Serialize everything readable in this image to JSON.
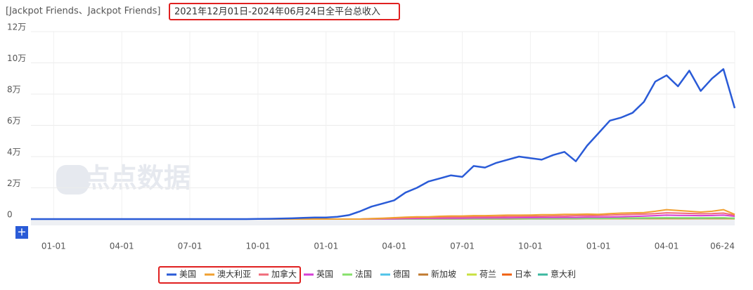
{
  "chart_data": {
    "type": "line",
    "app_title": "[Jackpot Friends、Jackpot Friends]",
    "title": "2021年12月01日-2024年06月24日全平台总收入",
    "watermark": "点点数据",
    "categories": [
      null,
      null,
      "01-01",
      null,
      null,
      null,
      null,
      null,
      "04-01",
      null,
      null,
      null,
      null,
      null,
      "07-01",
      null,
      null,
      null,
      null,
      null,
      "10-01",
      null,
      null,
      null,
      null,
      null,
      "01-01",
      null,
      null,
      null,
      null,
      null,
      "04-01",
      null,
      null,
      null,
      null,
      null,
      "07-01",
      null,
      null,
      null,
      null,
      null,
      "10-01",
      null,
      null,
      null,
      null,
      null,
      "01-01",
      null,
      null,
      null,
      null,
      null,
      "04-01",
      null,
      null,
      null,
      null,
      null,
      "06-24"
    ],
    "ylim": [
      0,
      120000
    ],
    "yticks": [
      0,
      {
        "value": 20000,
        "label": "2万"
      },
      {
        "value": 40000,
        "label": "4万"
      },
      {
        "value": 60000,
        "label": "6万"
      },
      {
        "value": 80000,
        "label": "8万"
      },
      {
        "value": 100000,
        "label": "10万"
      },
      {
        "value": 120000,
        "label": "12万"
      }
    ],
    "grid": true,
    "legend": "bottom",
    "series": [
      {
        "name": "美国",
        "color": "#2a5bd7",
        "values": [
          0,
          0,
          0,
          0,
          0,
          0,
          0,
          0,
          0,
          0,
          0,
          0,
          0,
          0,
          0,
          0,
          0,
          0,
          0,
          0,
          100,
          200,
          300,
          500,
          800,
          1000,
          1000,
          1500,
          2500,
          5000,
          8000,
          10000,
          12000,
          17000,
          20000,
          24000,
          26000,
          28000,
          27000,
          34000,
          33000,
          36000,
          38000,
          40000,
          39000,
          38000,
          41000,
          43000,
          37000,
          47000,
          55000,
          63000,
          65000,
          68000,
          75000,
          88000,
          92000,
          85000,
          95000,
          82000,
          90000,
          96000,
          71000
        ]
      },
      {
        "name": "澳大利亚",
        "color": "#f0a030",
        "values": [
          0,
          0,
          0,
          0,
          0,
          0,
          0,
          0,
          0,
          0,
          0,
          0,
          0,
          0,
          0,
          0,
          0,
          0,
          0,
          0,
          0,
          0,
          0,
          0,
          0,
          0,
          0,
          0,
          0,
          0,
          300,
          600,
          900,
          1200,
          1500,
          1500,
          1800,
          2000,
          2000,
          2200,
          2200,
          2400,
          2500,
          2500,
          2600,
          2800,
          2800,
          3000,
          3000,
          3200,
          3000,
          3500,
          3800,
          4000,
          4200,
          5000,
          6000,
          5500,
          5000,
          4500,
          5000,
          6000,
          3000
        ]
      },
      {
        "name": "加拿大",
        "color": "#f06b7a",
        "values": [
          0,
          0,
          0,
          0,
          0,
          0,
          0,
          0,
          0,
          0,
          0,
          0,
          0,
          0,
          0,
          0,
          0,
          0,
          0,
          0,
          0,
          0,
          0,
          0,
          0,
          0,
          0,
          0,
          0,
          0,
          200,
          300,
          500,
          700,
          900,
          1000,
          1100,
          1200,
          1300,
          1400,
          1500,
          1500,
          1600,
          1700,
          1800,
          1800,
          2000,
          2000,
          2200,
          2200,
          2300,
          2500,
          2800,
          3000,
          3200,
          3500,
          4000,
          3800,
          3600,
          3400,
          3500,
          3800,
          2500
        ]
      },
      {
        "name": "英国",
        "color": "#d63fd6",
        "values": [
          0,
          0,
          0,
          0,
          0,
          0,
          0,
          0,
          0,
          0,
          0,
          0,
          0,
          0,
          0,
          0,
          0,
          0,
          0,
          0,
          0,
          0,
          0,
          0,
          0,
          0,
          0,
          0,
          0,
          0,
          100,
          150,
          200,
          300,
          400,
          500,
          500,
          600,
          600,
          700,
          700,
          800,
          800,
          900,
          900,
          1000,
          1000,
          1100,
          1100,
          1200,
          1200,
          1300,
          1500,
          1700,
          1900,
          2200,
          2500,
          2400,
          2300,
          2200,
          2300,
          2500,
          1800
        ]
      },
      {
        "name": "法国",
        "color": "#86e06a",
        "values": [
          0,
          0,
          0,
          0,
          0,
          0,
          0,
          0,
          0,
          0,
          0,
          0,
          0,
          0,
          0,
          0,
          0,
          0,
          0,
          0,
          0,
          0,
          0,
          0,
          0,
          0,
          0,
          0,
          0,
          0,
          50,
          80,
          100,
          150,
          200,
          200,
          250,
          300,
          300,
          300,
          350,
          350,
          400,
          400,
          400,
          450,
          450,
          500,
          500,
          500,
          550,
          600,
          650,
          700,
          750,
          800,
          850,
          800,
          800,
          750,
          800,
          850,
          600
        ]
      },
      {
        "name": "德国",
        "color": "#4fc3e8",
        "values": [
          0,
          0,
          0,
          0,
          0,
          0,
          0,
          0,
          0,
          0,
          0,
          0,
          0,
          0,
          0,
          0,
          0,
          0,
          0,
          0,
          0,
          0,
          0,
          0,
          0,
          0,
          0,
          0,
          0,
          0,
          50,
          80,
          100,
          120,
          150,
          180,
          200,
          220,
          250,
          250,
          280,
          300,
          300,
          320,
          350,
          350,
          380,
          400,
          400,
          420,
          450,
          500,
          550,
          600,
          650,
          700,
          750,
          700,
          700,
          650,
          700,
          750,
          500
        ]
      },
      {
        "name": "新加坡",
        "color": "#c07a30",
        "values": [
          0,
          0,
          0,
          0,
          0,
          0,
          0,
          0,
          0,
          0,
          0,
          0,
          0,
          0,
          0,
          0,
          0,
          0,
          0,
          0,
          0,
          0,
          0,
          0,
          0,
          0,
          0,
          0,
          0,
          0,
          20,
          40,
          60,
          80,
          100,
          120,
          140,
          150,
          160,
          170,
          180,
          190,
          200,
          210,
          220,
          230,
          240,
          250,
          260,
          270,
          280,
          300,
          320,
          340,
          360,
          380,
          400,
          380,
          370,
          360,
          370,
          380,
          300
        ]
      },
      {
        "name": "荷兰",
        "color": "#c8e040",
        "values": [
          0,
          0,
          0,
          0,
          0,
          0,
          0,
          0,
          0,
          0,
          0,
          0,
          0,
          0,
          0,
          0,
          0,
          0,
          0,
          0,
          0,
          0,
          0,
          0,
          0,
          0,
          0,
          0,
          0,
          0,
          20,
          30,
          50,
          60,
          80,
          90,
          100,
          110,
          120,
          130,
          140,
          150,
          160,
          170,
          180,
          190,
          200,
          210,
          220,
          230,
          240,
          250,
          260,
          270,
          280,
          300,
          320,
          310,
          300,
          290,
          300,
          310,
          250
        ]
      },
      {
        "name": "日本",
        "color": "#f06010",
        "values": [
          0,
          0,
          0,
          0,
          0,
          0,
          0,
          0,
          0,
          0,
          0,
          0,
          0,
          0,
          0,
          0,
          0,
          0,
          0,
          0,
          0,
          0,
          0,
          0,
          0,
          0,
          0,
          0,
          0,
          0,
          20,
          30,
          40,
          50,
          60,
          70,
          80,
          90,
          100,
          110,
          120,
          130,
          140,
          150,
          160,
          170,
          180,
          190,
          200,
          210,
          220,
          230,
          240,
          250,
          260,
          270,
          280,
          270,
          260,
          250,
          260,
          270,
          200
        ]
      },
      {
        "name": "意大利",
        "color": "#3cb8a0",
        "values": [
          0,
          0,
          0,
          0,
          0,
          0,
          0,
          0,
          0,
          0,
          0,
          0,
          0,
          0,
          0,
          0,
          0,
          0,
          0,
          0,
          0,
          0,
          0,
          0,
          0,
          0,
          0,
          0,
          0,
          0,
          50,
          80,
          100,
          150,
          180,
          200,
          220,
          250,
          280,
          300,
          320,
          340,
          360,
          380,
          400,
          420,
          440,
          460,
          480,
          500,
          520,
          560,
          600,
          640,
          680,
          720,
          760,
          740,
          720,
          700,
          720,
          740,
          550
        ]
      }
    ]
  }
}
